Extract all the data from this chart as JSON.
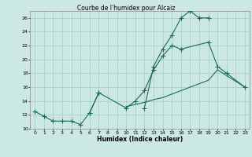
{
  "title": "Courbe de l'humidex pour Alcaiz",
  "xlabel": "Humidex (Indice chaleur)",
  "background_color": "#cce8e4",
  "grid_color": "#aacfcb",
  "line_color": "#1a6b5a",
  "xlim": [
    -0.5,
    23.5
  ],
  "ylim": [
    10,
    27
  ],
  "xticks": [
    0,
    1,
    2,
    3,
    4,
    5,
    6,
    7,
    8,
    9,
    10,
    11,
    12,
    13,
    14,
    15,
    16,
    17,
    18,
    19,
    20,
    21,
    22,
    23
  ],
  "yticks": [
    10,
    12,
    14,
    16,
    18,
    20,
    22,
    24,
    26
  ],
  "lines": [
    {
      "x": [
        0,
        1,
        2,
        3,
        4,
        5,
        6,
        7
      ],
      "y": [
        12.5,
        11.8,
        11.1,
        11.1,
        11.1,
        10.6,
        12.3,
        15.2
      ],
      "marker": true
    },
    {
      "x": [
        6,
        7,
        10,
        11,
        12,
        13,
        14,
        15,
        16,
        19,
        20,
        21,
        23
      ],
      "y": [
        12.3,
        15.2,
        13.0,
        14.0,
        15.5,
        18.5,
        20.5,
        22.0,
        21.5,
        22.5,
        19.0,
        18.0,
        16.0
      ],
      "marker": true
    },
    {
      "x": [
        12,
        13,
        14,
        15,
        16,
        17,
        18,
        19
      ],
      "y": [
        13.0,
        19.0,
        21.5,
        23.5,
        26.0,
        27.0,
        26.0,
        26.0
      ],
      "marker": true
    },
    {
      "x": [
        10,
        11,
        12,
        13,
        14,
        15,
        16,
        17,
        18,
        19,
        20,
        23
      ],
      "y": [
        13.2,
        13.5,
        13.8,
        14.2,
        14.5,
        15.0,
        15.5,
        16.0,
        16.5,
        17.0,
        18.5,
        16.0
      ],
      "marker": false
    }
  ]
}
